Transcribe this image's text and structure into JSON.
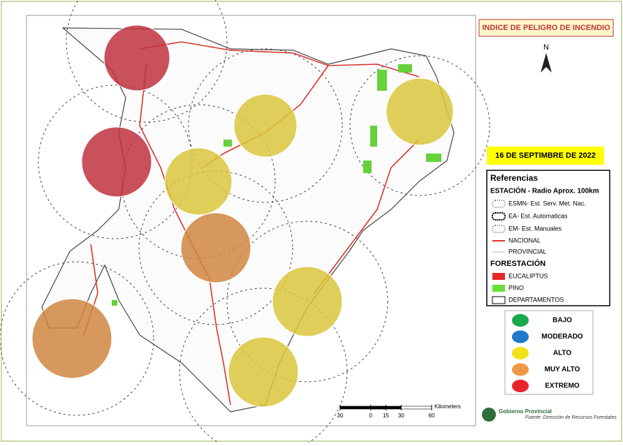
{
  "title": "INDICE DE PELIGRO DE INCENDIO",
  "north": "N",
  "date": "16 DE SEPTIMBRE DE 2022",
  "legend": {
    "heading": "Referencias",
    "station_heading": "ESTACIÓN - Radio Aprox. 100km",
    "stations": [
      "ESMN- Est. Serv. Met. Nac.",
      "EA- Est. Automaticas",
      "EM- Est. Manuales"
    ],
    "roads": [
      "NACIONAL",
      "PROVINCIAL"
    ],
    "forest_heading": "FORESTACIÓN",
    "forest": [
      "EUCALIPTUS",
      "PINO",
      "DEPARTAMENTOS"
    ]
  },
  "levels": [
    {
      "label": "BAJO",
      "color": "#1aa84a"
    },
    {
      "label": "MODERADO",
      "color": "#1f78c8"
    },
    {
      "label": "ALTO",
      "color": "#f2e21a"
    },
    {
      "label": "MUY ALTO",
      "color": "#f0984a"
    },
    {
      "label": "EXTREMO",
      "color": "#e8262a"
    }
  ],
  "scale": {
    "unit": "Kilometers",
    "ticks": [
      {
        "value": -30,
        "label": "30"
      },
      15,
      0,
      30,
      60
    ]
  },
  "source": {
    "org": "Gobierno Provincial",
    "note": "Fuente: Dirección de Recursos Forestales"
  }
}
